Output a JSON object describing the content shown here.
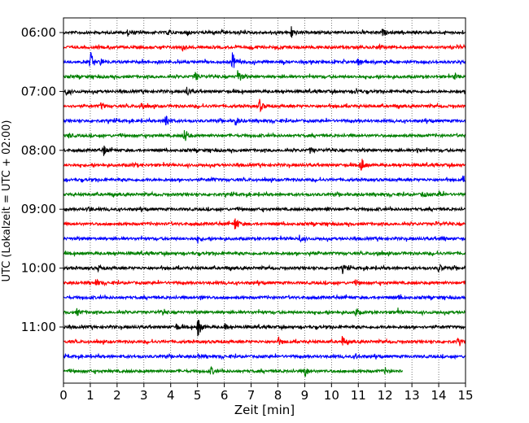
{
  "chart_data": {
    "type": "line",
    "title": "",
    "xlabel": "Zeit  [min]",
    "ylabel": "UTC (Lokalzeit = UTC + 02:00)",
    "xlim": [
      0,
      15
    ],
    "x_ticks": [
      "0",
      "1",
      "2",
      "3",
      "4",
      "5",
      "6",
      "7",
      "8",
      "9",
      "10",
      "11",
      "12",
      "13",
      "14",
      "15"
    ],
    "y_tick_labels": [
      "06:00",
      "07:00",
      "08:00",
      "09:00",
      "10:00",
      "11:00"
    ],
    "trace_interval_min": 15,
    "grid": "vertical dotted",
    "trace_colors": [
      "#000000",
      "#ff0000",
      "#0000ff",
      "#008000"
    ],
    "series": [
      {
        "start": "06:00",
        "color": "#000000",
        "end_min": 15,
        "events": [
          [
            2.4,
            0.25
          ],
          [
            3.9,
            0.3
          ],
          [
            4.6,
            0.3
          ],
          [
            8.5,
            0.55
          ],
          [
            11.9,
            0.3
          ]
        ]
      },
      {
        "start": "06:15",
        "color": "#ff0000",
        "end_min": 15,
        "events": [
          [
            4.4,
            0.3
          ],
          [
            7.0,
            0.2
          ],
          [
            11.8,
            0.2
          ]
        ]
      },
      {
        "start": "06:30",
        "color": "#0000ff",
        "end_min": 15,
        "events": [
          [
            1.0,
            1.0
          ],
          [
            1.4,
            0.3
          ],
          [
            6.3,
            0.9
          ],
          [
            11.0,
            0.6
          ]
        ]
      },
      {
        "start": "06:45",
        "color": "#008000",
        "end_min": 15,
        "events": [
          [
            4.9,
            0.5
          ],
          [
            6.5,
            0.75
          ],
          [
            14.6,
            0.3
          ]
        ]
      },
      {
        "start": "07:00",
        "color": "#000000",
        "end_min": 15,
        "events": [
          [
            0.1,
            0.3
          ],
          [
            4.6,
            0.45
          ],
          [
            10.9,
            0.3
          ]
        ]
      },
      {
        "start": "07:15",
        "color": "#ff0000",
        "end_min": 15,
        "events": [
          [
            1.4,
            0.3
          ],
          [
            2.9,
            0.45
          ],
          [
            7.3,
            0.65
          ]
        ]
      },
      {
        "start": "07:30",
        "color": "#0000ff",
        "end_min": 15,
        "events": [
          [
            3.8,
            1.0
          ],
          [
            6.4,
            0.55
          ]
        ]
      },
      {
        "start": "07:45",
        "color": "#008000",
        "end_min": 15,
        "events": [
          [
            4.5,
            0.85
          ],
          [
            0.2,
            0.2
          ]
        ]
      },
      {
        "start": "08:00",
        "color": "#000000",
        "end_min": 15,
        "events": [
          [
            1.5,
            0.45
          ],
          [
            9.2,
            0.25
          ],
          [
            13.2,
            0.2
          ]
        ]
      },
      {
        "start": "08:15",
        "color": "#ff0000",
        "end_min": 15,
        "events": [
          [
            2.6,
            0.2
          ],
          [
            11.1,
            0.75
          ]
        ]
      },
      {
        "start": "08:30",
        "color": "#0000ff",
        "end_min": 15,
        "events": [
          [
            5.5,
            0.15
          ],
          [
            14.9,
            0.2
          ]
        ]
      },
      {
        "start": "08:45",
        "color": "#008000",
        "end_min": 15,
        "events": [
          [
            13.4,
            0.3
          ],
          [
            14.0,
            0.35
          ]
        ]
      },
      {
        "start": "09:00",
        "color": "#000000",
        "end_min": 15,
        "events": [
          [
            0.9,
            0.3
          ],
          [
            9.8,
            0.2
          ]
        ]
      },
      {
        "start": "09:15",
        "color": "#ff0000",
        "end_min": 15,
        "events": [
          [
            6.4,
            0.75
          ],
          [
            13.9,
            0.2
          ]
        ]
      },
      {
        "start": "09:30",
        "color": "#0000ff",
        "end_min": 15,
        "events": [
          [
            5.0,
            0.25
          ],
          [
            8.8,
            0.3
          ],
          [
            14.1,
            0.2
          ]
        ]
      },
      {
        "start": "09:45",
        "color": "#008000",
        "end_min": 15,
        "events": [
          [
            9.2,
            0.25
          ],
          [
            11.7,
            0.2
          ]
        ]
      },
      {
        "start": "10:00",
        "color": "#000000",
        "end_min": 15,
        "events": [
          [
            1.3,
            0.3
          ],
          [
            10.4,
            0.3
          ],
          [
            14.0,
            0.4
          ]
        ]
      },
      {
        "start": "10:15",
        "color": "#ff0000",
        "end_min": 15,
        "events": [
          [
            1.2,
            0.35
          ],
          [
            10.9,
            0.2
          ]
        ]
      },
      {
        "start": "10:30",
        "color": "#0000ff",
        "end_min": 15,
        "events": [
          [
            5.1,
            0.2
          ],
          [
            12.5,
            0.2
          ]
        ]
      },
      {
        "start": "10:45",
        "color": "#008000",
        "end_min": 15,
        "events": [
          [
            0.5,
            0.3
          ],
          [
            3.7,
            0.25
          ],
          [
            10.9,
            0.35
          ],
          [
            12.4,
            0.35
          ]
        ]
      },
      {
        "start": "11:00",
        "color": "#000000",
        "end_min": 15,
        "events": [
          [
            4.2,
            0.3
          ],
          [
            5.0,
            1.1
          ],
          [
            6.0,
            0.25
          ]
        ]
      },
      {
        "start": "11:15",
        "color": "#ff0000",
        "end_min": 15,
        "events": [
          [
            8.0,
            0.35
          ],
          [
            10.4,
            0.45
          ],
          [
            14.7,
            0.3
          ]
        ]
      },
      {
        "start": "11:30",
        "color": "#0000ff",
        "end_min": 15,
        "events": [
          [
            5.0,
            0.2
          ],
          [
            10.9,
            0.2
          ]
        ]
      },
      {
        "start": "11:45",
        "color": "#008000",
        "end_min": 12.65,
        "events": [
          [
            5.5,
            0.35
          ],
          [
            9.0,
            0.55
          ],
          [
            12.0,
            0.2
          ]
        ]
      }
    ]
  }
}
